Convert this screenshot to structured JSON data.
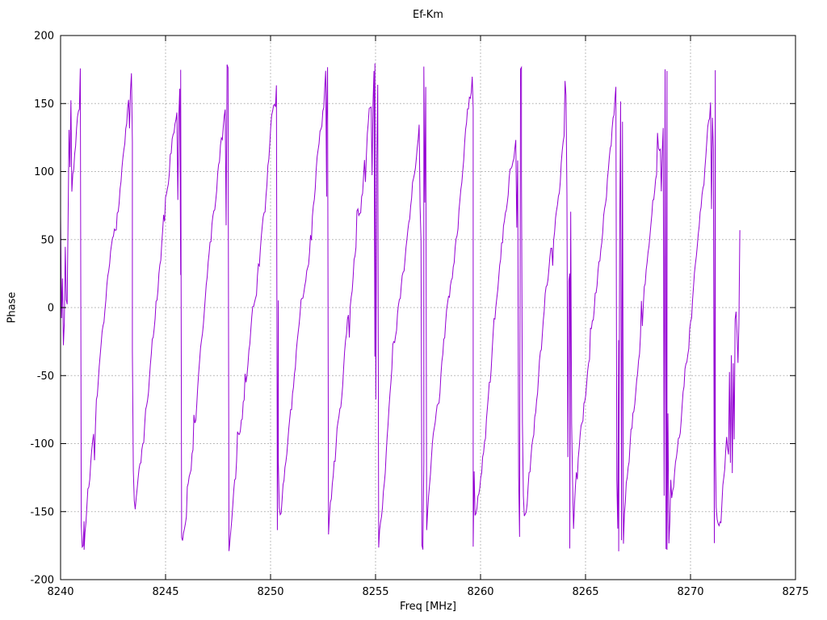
{
  "chart_data": {
    "type": "line",
    "title": "Ef-Km",
    "xlabel": "Freq [MHz]",
    "ylabel": "Phase",
    "xlim": [
      8240,
      8275
    ],
    "ylim": [
      -200,
      200
    ],
    "x_ticks": [
      8240,
      8245,
      8250,
      8255,
      8260,
      8265,
      8270,
      8275
    ],
    "y_ticks": [
      200,
      150,
      100,
      50,
      0,
      -50,
      -100,
      -150,
      -200
    ],
    "grid": true,
    "legend": "none",
    "line_color": "#9400d3",
    "grid_color": "#b3b3b3",
    "axis_color": "#000000",
    "background": "#ffffff",
    "x_data_range": [
      8240.0,
      8272.35
    ],
    "phase_wrap_limits": [
      -180,
      180
    ],
    "wrap_frequencies_mhz": [
      8241.12,
      8243.42,
      8245.72,
      8248.02,
      8250.37,
      8252.67,
      8254.97,
      8257.3,
      8259.65,
      8261.95,
      8264.25,
      8266.58,
      8268.88,
      8271.18
    ],
    "generator": {
      "seed": 7,
      "segment_boundaries": [
        8238.85,
        8241.12,
        8243.42,
        8245.72,
        8248.02,
        8250.37,
        8252.67,
        8254.97,
        8257.3,
        8259.65,
        8261.95,
        8264.25,
        8266.58,
        8268.88,
        8271.18,
        8273.5
      ],
      "step_mhz": 0.045,
      "edge_low": 0.12,
      "edge_high": 0.86,
      "walk_step": 15,
      "walk_clamp": 28,
      "spike_prob_base": 0.06,
      "spike_prob_edge": 0.5,
      "spike_small": 22,
      "spike_edge": 170,
      "head_noise_until": 8240.5,
      "tail_noise_from": 8271.75,
      "special_noise": 75
    }
  }
}
